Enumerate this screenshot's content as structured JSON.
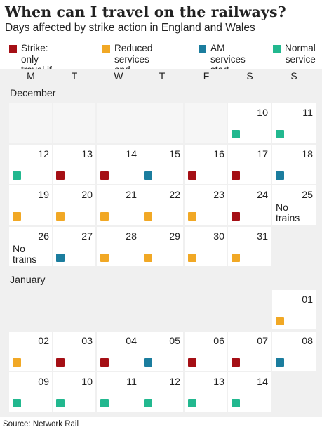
{
  "title": "When can I travel on the railways?",
  "subtitle": "Days affected by strike action in England and Wales",
  "legend": [
    {
      "key": "strike",
      "label": "Strike: only\ntravel if essential",
      "color": "#a50f15"
    },
    {
      "key": "reduced",
      "label": "Reduced services\nand busier trains",
      "color": "#f1a825"
    },
    {
      "key": "am_later",
      "label": "AM services\nstart later",
      "color": "#1b7d9e"
    },
    {
      "key": "normal",
      "label": "Normal\nservice",
      "color": "#22b88f"
    }
  ],
  "weekdays": [
    "M",
    "T",
    "W",
    "T",
    "F",
    "S",
    "S"
  ],
  "source": "Source: Network Rail",
  "chart_data": {
    "type": "table",
    "months": [
      {
        "name": "December",
        "weeks": [
          [
            {
              "blank": true
            },
            {
              "blank": true
            },
            {
              "blank": true
            },
            {
              "blank": true
            },
            {
              "blank": true
            },
            {
              "day": "10",
              "status": "normal"
            },
            {
              "day": "11",
              "status": "normal"
            }
          ],
          [
            {
              "day": "12",
              "status": "normal"
            },
            {
              "day": "13",
              "status": "strike"
            },
            {
              "day": "14",
              "status": "strike"
            },
            {
              "day": "15",
              "status": "am_later"
            },
            {
              "day": "16",
              "status": "strike"
            },
            {
              "day": "17",
              "status": "strike"
            },
            {
              "day": "18",
              "status": "am_later"
            }
          ],
          [
            {
              "day": "19",
              "status": "reduced"
            },
            {
              "day": "20",
              "status": "reduced"
            },
            {
              "day": "21",
              "status": "reduced"
            },
            {
              "day": "22",
              "status": "reduced"
            },
            {
              "day": "23",
              "status": "reduced"
            },
            {
              "day": "24",
              "status": "strike"
            },
            {
              "day": "25",
              "status": "none",
              "note": "No\ntrains"
            }
          ],
          [
            {
              "day": "26",
              "status": "none",
              "note": "No\ntrains"
            },
            {
              "day": "27",
              "status": "am_later"
            },
            {
              "day": "28",
              "status": "reduced"
            },
            {
              "day": "29",
              "status": "reduced"
            },
            {
              "day": "30",
              "status": "reduced"
            },
            {
              "day": "31",
              "status": "reduced"
            },
            {
              "gap": true
            }
          ]
        ]
      },
      {
        "name": "January",
        "weeks": [
          [
            {
              "gap": true
            },
            {
              "gap": true
            },
            {
              "gap": true
            },
            {
              "gap": true
            },
            {
              "gap": true
            },
            {
              "gap": true
            },
            {
              "day": "01",
              "status": "reduced"
            }
          ],
          [
            {
              "day": "02",
              "status": "reduced"
            },
            {
              "day": "03",
              "status": "strike"
            },
            {
              "day": "04",
              "status": "strike"
            },
            {
              "day": "05",
              "status": "am_later"
            },
            {
              "day": "06",
              "status": "strike"
            },
            {
              "day": "07",
              "status": "strike"
            },
            {
              "day": "08",
              "status": "am_later"
            }
          ],
          [
            {
              "day": "09",
              "status": "normal"
            },
            {
              "day": "10",
              "status": "normal"
            },
            {
              "day": "11",
              "status": "normal"
            },
            {
              "day": "12",
              "status": "normal"
            },
            {
              "day": "13",
              "status": "normal"
            },
            {
              "day": "14",
              "status": "normal"
            },
            {
              "gap": true
            }
          ]
        ]
      }
    ]
  }
}
